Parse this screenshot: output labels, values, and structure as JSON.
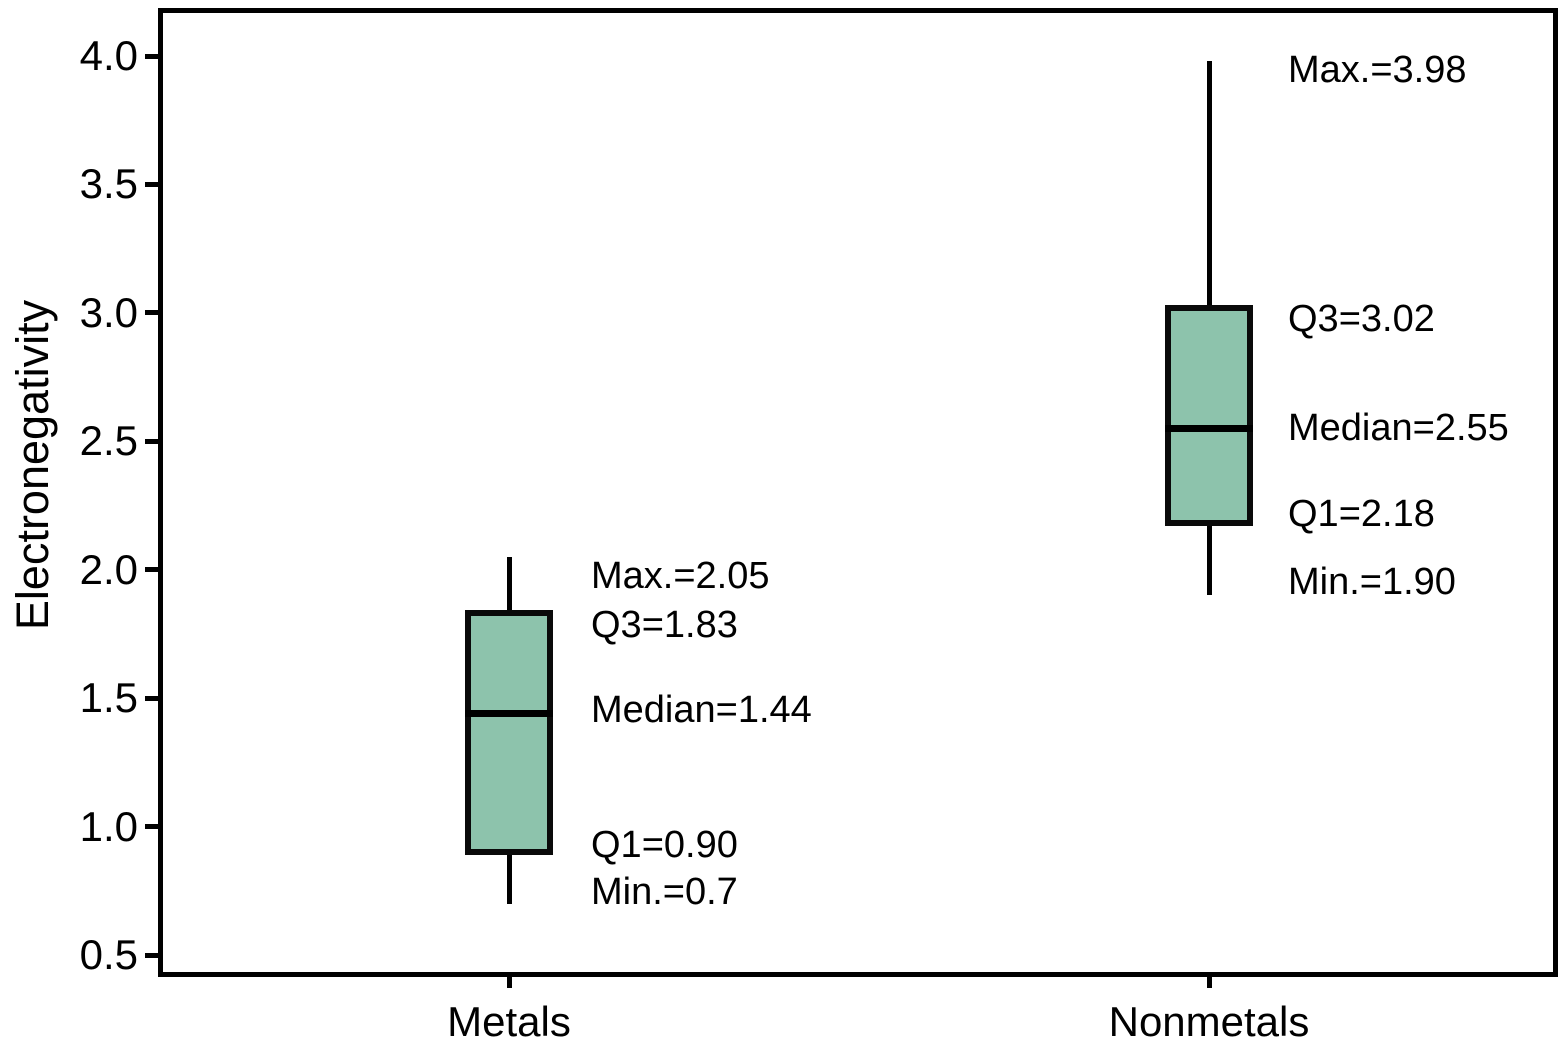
{
  "figure": {
    "background": "#ffffff",
    "line_color": "#000000",
    "box_fill": "#8dc3ac",
    "box_border": "#0a0a0a"
  },
  "chart_data": {
    "type": "boxplot",
    "title": "",
    "xlabel": "",
    "ylabel": "Electronegativity",
    "grid": false,
    "legend": null,
    "y_axis": {
      "min": 0.5,
      "max": 4.0,
      "step": 0.5,
      "tick_labels": [
        "0.5",
        "1.0",
        "1.5",
        "2.0",
        "2.5",
        "3.0",
        "3.5",
        "4.0"
      ]
    },
    "categories": [
      "Metals",
      "Nonmetals"
    ],
    "series": [
      {
        "category": "Metals",
        "min": 0.7,
        "q1": 0.9,
        "median": 1.44,
        "q3": 1.83,
        "max": 2.05,
        "annotations": [
          {
            "key": "max",
            "anchor": 2.05,
            "text": "Max.=2.05"
          },
          {
            "key": "q3",
            "anchor": 1.83,
            "text": "Q3=1.83"
          },
          {
            "key": "median",
            "anchor": 1.44,
            "text": "Median=1.44"
          },
          {
            "key": "q1",
            "anchor": 0.9,
            "text": "Q1=0.90"
          },
          {
            "key": "min",
            "anchor": 0.7,
            "text": "Min.=0.7"
          }
        ]
      },
      {
        "category": "Nonmetals",
        "min": 1.9,
        "q1": 2.18,
        "median": 2.55,
        "q3": 3.02,
        "max": 3.98,
        "annotations": [
          {
            "key": "max",
            "anchor": 3.98,
            "text": "Max.=3.98"
          },
          {
            "key": "q3",
            "anchor": 3.02,
            "text": "Q3=3.02"
          },
          {
            "key": "median",
            "anchor": 2.55,
            "text": "Median=2.55"
          },
          {
            "key": "q1",
            "anchor": 2.18,
            "text": "Q1=2.18"
          },
          {
            "key": "min",
            "anchor": 1.9,
            "text": "Min.=1.90"
          }
        ]
      }
    ]
  }
}
